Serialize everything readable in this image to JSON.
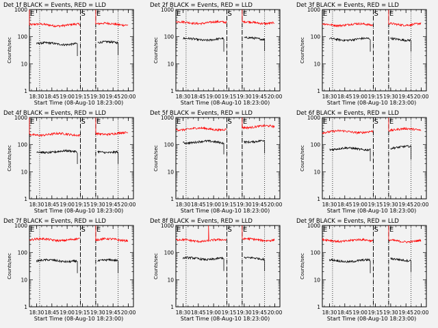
{
  "chart_data": [
    {
      "type": "line",
      "title": "Det 1f BLACK = Events, RED = LLD",
      "ylabel": "Counts/sec",
      "xlabel": "Start Time (08-Aug-10 18:23:00)",
      "x_ticks": [
        "18:30",
        "18:45",
        "19:00",
        "19:15",
        "19:30",
        "19:45",
        "20:00"
      ],
      "y_ticks": [
        "1",
        "10",
        "100",
        "1000"
      ],
      "xlim": [
        "18:23",
        "20:05"
      ],
      "ylim": [
        1,
        1000
      ],
      "y_scale": "log",
      "markers": [
        {
          "label": "E",
          "time": "18:23",
          "style": "dotted"
        },
        {
          "label": "S",
          "time": "19:13",
          "style": "dashed"
        },
        {
          "label": "E",
          "time": "19:28",
          "style": "dashed"
        }
      ],
      "dotted_lines": [
        "18:33",
        "19:13",
        "19:28",
        "19:50"
      ],
      "series": [
        {
          "name": "RED = LLD",
          "color": "#ff0000",
          "segments": [
            {
              "from": "18:23",
              "to": "19:13",
              "level": 270,
              "spike": {
                "at": "18:23",
                "value": 1000
              }
            },
            {
              "from": "19:28",
              "to": "20:00",
              "level": 290,
              "spike": {
                "at": "19:28",
                "value": 1000
              }
            }
          ]
        },
        {
          "name": "BLACK = Events",
          "color": "#000000",
          "segments": [
            {
              "from": "18:30",
              "to": "19:10",
              "level": 55
            },
            {
              "from": "19:30",
              "to": "19:50",
              "level": 60
            }
          ]
        }
      ]
    },
    {
      "type": "line",
      "title": "Det 2f BLACK = Events, RED = LLD",
      "ylabel": "Counts/sec",
      "xlabel": "Start Time (08-Aug-10 18:23:00)",
      "x_ticks": [
        "18:30",
        "18:45",
        "19:00",
        "19:15",
        "19:30",
        "19:45",
        "20:00"
      ],
      "y_ticks": [
        "1",
        "10",
        "100",
        "1000"
      ],
      "xlim": [
        "18:23",
        "20:05"
      ],
      "ylim": [
        1,
        1000
      ],
      "y_scale": "log",
      "markers": [
        {
          "label": "E",
          "time": "18:23",
          "style": "dotted"
        },
        {
          "label": "S",
          "time": "19:13",
          "style": "dashed"
        },
        {
          "label": "E",
          "time": "19:28",
          "style": "dashed"
        }
      ],
      "dotted_lines": [
        "18:33",
        "19:13",
        "19:28",
        "19:50"
      ],
      "series": [
        {
          "name": "RED = LLD",
          "color": "#ff0000",
          "segments": [
            {
              "from": "18:23",
              "to": "19:13",
              "level": 330
            },
            {
              "from": "19:28",
              "to": "20:00",
              "level": 330,
              "spike": {
                "at": "19:28",
                "value": 1000
              }
            }
          ]
        },
        {
          "name": "BLACK = Events",
          "color": "#000000",
          "segments": [
            {
              "from": "18:30",
              "to": "19:10",
              "level": 80
            },
            {
              "from": "19:30",
              "to": "19:50",
              "level": 85
            }
          ]
        }
      ]
    },
    {
      "type": "line",
      "title": "Det 3f BLACK = Events, RED = LLD",
      "ylabel": "Counts/sec",
      "xlabel": "Start Time (08-Aug-10 18:23:00)",
      "x_ticks": [
        "18:30",
        "18:45",
        "19:00",
        "19:15",
        "19:30",
        "19:45",
        "20:00"
      ],
      "y_ticks": [
        "1",
        "10",
        "100",
        "1000"
      ],
      "xlim": [
        "18:23",
        "20:05"
      ],
      "ylim": [
        1,
        1000
      ],
      "y_scale": "log",
      "markers": [
        {
          "label": "E",
          "time": "18:23",
          "style": "dotted"
        },
        {
          "label": "S",
          "time": "19:13",
          "style": "dashed"
        },
        {
          "label": "E",
          "time": "19:28",
          "style": "dashed"
        }
      ],
      "dotted_lines": [
        "18:33",
        "19:13",
        "19:28",
        "19:50"
      ],
      "series": [
        {
          "name": "RED = LLD",
          "color": "#ff0000",
          "segments": [
            {
              "from": "18:23",
              "to": "19:13",
              "level": 280
            },
            {
              "from": "19:28",
              "to": "20:00",
              "level": 290,
              "spike": {
                "at": "19:28",
                "value": 1000
              }
            }
          ]
        },
        {
          "name": "BLACK = Events",
          "color": "#000000",
          "segments": [
            {
              "from": "18:30",
              "to": "19:10",
              "level": 80
            },
            {
              "from": "19:30",
              "to": "19:50",
              "level": 80
            }
          ]
        }
      ]
    },
    {
      "type": "line",
      "title": "Det 4f BLACK = Events, RED = LLD",
      "ylabel": "Counts/sec",
      "xlabel": "Start Time (08-Aug-10 18:23:00)",
      "x_ticks": [
        "18:30",
        "18:45",
        "19:00",
        "19:15",
        "19:30",
        "19:45",
        "20:00"
      ],
      "y_ticks": [
        "1",
        "10",
        "100",
        "1000"
      ],
      "xlim": [
        "18:23",
        "20:05"
      ],
      "ylim": [
        1,
        1000
      ],
      "y_scale": "log",
      "markers": [
        {
          "label": "E",
          "time": "18:23",
          "style": "dotted"
        },
        {
          "label": "S",
          "time": "19:13",
          "style": "dashed"
        },
        {
          "label": "E",
          "time": "19:28",
          "style": "dashed"
        }
      ],
      "dotted_lines": [
        "18:33",
        "19:13",
        "19:28",
        "19:50"
      ],
      "series": [
        {
          "name": "RED = LLD",
          "color": "#ff0000",
          "segments": [
            {
              "from": "18:23",
              "to": "19:13",
              "level": 240,
              "spike": {
                "at": "18:23",
                "value": 1000
              }
            },
            {
              "from": "19:28",
              "to": "20:00",
              "level": 260,
              "spike": {
                "at": "19:28",
                "value": 1000
              }
            }
          ]
        },
        {
          "name": "BLACK = Events",
          "color": "#000000",
          "segments": [
            {
              "from": "18:30",
              "to": "19:10",
              "level": 55
            },
            {
              "from": "19:30",
              "to": "19:50",
              "level": 55
            }
          ]
        }
      ]
    },
    {
      "type": "line",
      "title": "Det 5f BLACK = Events, RED = LLD",
      "ylabel": "Counts/sec",
      "xlabel": "Start Time (08-Aug-10 18:23:00)",
      "x_ticks": [
        "18:30",
        "18:45",
        "19:00",
        "19:15",
        "19:30",
        "19:45",
        "20:00"
      ],
      "y_ticks": [
        "1",
        "10",
        "100",
        "1000"
      ],
      "xlim": [
        "18:23",
        "20:05"
      ],
      "ylim": [
        1,
        1000
      ],
      "y_scale": "log",
      "markers": [
        {
          "label": "E",
          "time": "18:23",
          "style": "dotted"
        },
        {
          "label": "S",
          "time": "19:13",
          "style": "dashed"
        },
        {
          "label": "E",
          "time": "19:28",
          "style": "dashed"
        }
      ],
      "dotted_lines": [
        "18:33",
        "19:13",
        "19:28",
        "19:50"
      ],
      "series": [
        {
          "name": "RED = LLD",
          "color": "#ff0000",
          "segments": [
            {
              "from": "18:23",
              "to": "19:13",
              "level": 380
            },
            {
              "from": "19:28",
              "to": "20:00",
              "level": 460,
              "spike": {
                "at": "19:28",
                "value": 1000
              }
            }
          ]
        },
        {
          "name": "BLACK = Events",
          "color": "#000000",
          "segments": [
            {
              "from": "18:30",
              "to": "19:10",
              "level": 125
            },
            {
              "from": "19:30",
              "to": "19:50",
              "level": 135
            }
          ]
        }
      ]
    },
    {
      "type": "line",
      "title": "Det 6f BLACK = Events, RED = LLD",
      "ylabel": "Counts/sec",
      "xlabel": "Start Time (08-Aug-10 18:23:00)",
      "x_ticks": [
        "18:30",
        "18:45",
        "19:00",
        "19:15",
        "19:30",
        "19:45",
        "20:00"
      ],
      "y_ticks": [
        "1",
        "10",
        "100",
        "1000"
      ],
      "xlim": [
        "18:23",
        "20:05"
      ],
      "ylim": [
        1,
        1000
      ],
      "y_scale": "log",
      "markers": [
        {
          "label": "E",
          "time": "18:23",
          "style": "dotted"
        },
        {
          "label": "S",
          "time": "19:13",
          "style": "dashed"
        },
        {
          "label": "E",
          "time": "19:28",
          "style": "dashed"
        }
      ],
      "dotted_lines": [
        "18:33",
        "19:13",
        "19:28",
        "19:50"
      ],
      "series": [
        {
          "name": "RED = LLD",
          "color": "#ff0000",
          "segments": [
            {
              "from": "18:23",
              "to": "19:13",
              "level": 300
            },
            {
              "from": "19:28",
              "to": "20:00",
              "level": 360,
              "spike": {
                "at": "19:28",
                "value": 1000
              }
            }
          ]
        },
        {
          "name": "BLACK = Events",
          "color": "#000000",
          "segments": [
            {
              "from": "18:30",
              "to": "19:10",
              "level": 70
            },
            {
              "from": "19:30",
              "to": "19:50",
              "level": 80
            }
          ]
        }
      ]
    },
    {
      "type": "line",
      "title": "Det 7f BLACK = Events, RED = LLD",
      "ylabel": "Counts/sec",
      "xlabel": "Start Time (08-Aug-10 18:23:00)",
      "x_ticks": [
        "18:30",
        "18:45",
        "19:00",
        "19:15",
        "19:30",
        "19:45",
        "20:00"
      ],
      "y_ticks": [
        "1",
        "10",
        "100",
        "1000"
      ],
      "xlim": [
        "18:23",
        "20:05"
      ],
      "ylim": [
        1,
        1000
      ],
      "y_scale": "log",
      "markers": [
        {
          "label": "E",
          "time": "18:23",
          "style": "dotted"
        },
        {
          "label": "S",
          "time": "19:13",
          "style": "dashed"
        },
        {
          "label": "E",
          "time": "19:28",
          "style": "dashed"
        }
      ],
      "dotted_lines": [
        "18:33",
        "19:13",
        "19:28",
        "19:50"
      ],
      "series": [
        {
          "name": "RED = LLD",
          "color": "#ff0000",
          "segments": [
            {
              "from": "18:23",
              "to": "19:13",
              "level": 300
            },
            {
              "from": "19:28",
              "to": "20:00",
              "level": 300,
              "spike": {
                "at": "19:28",
                "value": 1000
              }
            }
          ]
        },
        {
          "name": "BLACK = Events",
          "color": "#000000",
          "segments": [
            {
              "from": "18:30",
              "to": "19:10",
              "level": 50
            },
            {
              "from": "19:30",
              "to": "19:50",
              "level": 50
            }
          ]
        }
      ]
    },
    {
      "type": "line",
      "title": "Det 8f BLACK = Events, RED = LLD",
      "ylabel": "Counts/sec",
      "xlabel": "Start Time (08-Aug-10 18:23:00)",
      "x_ticks": [
        "18:30",
        "18:45",
        "19:00",
        "19:15",
        "19:30",
        "19:45",
        "20:00"
      ],
      "y_ticks": [
        "1",
        "10",
        "100",
        "1000"
      ],
      "xlim": [
        "18:23",
        "20:05"
      ],
      "ylim": [
        1,
        1000
      ],
      "y_scale": "log",
      "markers": [
        {
          "label": "E",
          "time": "18:23",
          "style": "dotted"
        },
        {
          "label": "S",
          "time": "19:13",
          "style": "dashed"
        },
        {
          "label": "E",
          "time": "19:28",
          "style": "dashed"
        }
      ],
      "dotted_lines": [
        "18:33",
        "19:13",
        "19:28",
        "19:50"
      ],
      "series": [
        {
          "name": "RED = LLD",
          "color": "#ff0000",
          "segments": [
            {
              "from": "18:23",
              "to": "19:13",
              "level": 280,
              "spike": {
                "at": "18:55",
                "value": 1000
              }
            },
            {
              "from": "19:28",
              "to": "20:00",
              "level": 300,
              "spike": {
                "at": "19:28",
                "value": 1000
              }
            }
          ]
        },
        {
          "name": "BLACK = Events",
          "color": "#000000",
          "segments": [
            {
              "from": "18:30",
              "to": "19:10",
              "level": 60
            },
            {
              "from": "19:30",
              "to": "19:50",
              "level": 60
            }
          ]
        }
      ]
    },
    {
      "type": "line",
      "title": "Det 9f BLACK = Events, RED = LLD",
      "ylabel": "Counts/sec",
      "xlabel": "Start Time (08-Aug-10 18:23:00)",
      "x_ticks": [
        "18:30",
        "18:45",
        "19:00",
        "19:15",
        "19:30",
        "19:45",
        "20:00"
      ],
      "y_ticks": [
        "1",
        "10",
        "100",
        "1000"
      ],
      "xlim": [
        "18:23",
        "20:05"
      ],
      "ylim": [
        1,
        1000
      ],
      "y_scale": "log",
      "markers": [
        {
          "label": "E",
          "time": "18:23",
          "style": "dotted"
        },
        {
          "label": "S",
          "time": "19:13",
          "style": "dashed"
        },
        {
          "label": "E",
          "time": "19:28",
          "style": "dashed"
        }
      ],
      "dotted_lines": [
        "18:33",
        "19:13",
        "19:28",
        "19:50"
      ],
      "series": [
        {
          "name": "RED = LLD",
          "color": "#ff0000",
          "segments": [
            {
              "from": "18:23",
              "to": "19:13",
              "level": 280
            },
            {
              "from": "19:28",
              "to": "20:00",
              "level": 270,
              "spike": {
                "at": "19:28",
                "value": 1000
              }
            }
          ]
        },
        {
          "name": "BLACK = Events",
          "color": "#000000",
          "segments": [
            {
              "from": "18:30",
              "to": "19:10",
              "level": 50
            },
            {
              "from": "19:30",
              "to": "19:50",
              "level": 55
            }
          ]
        }
      ]
    }
  ]
}
